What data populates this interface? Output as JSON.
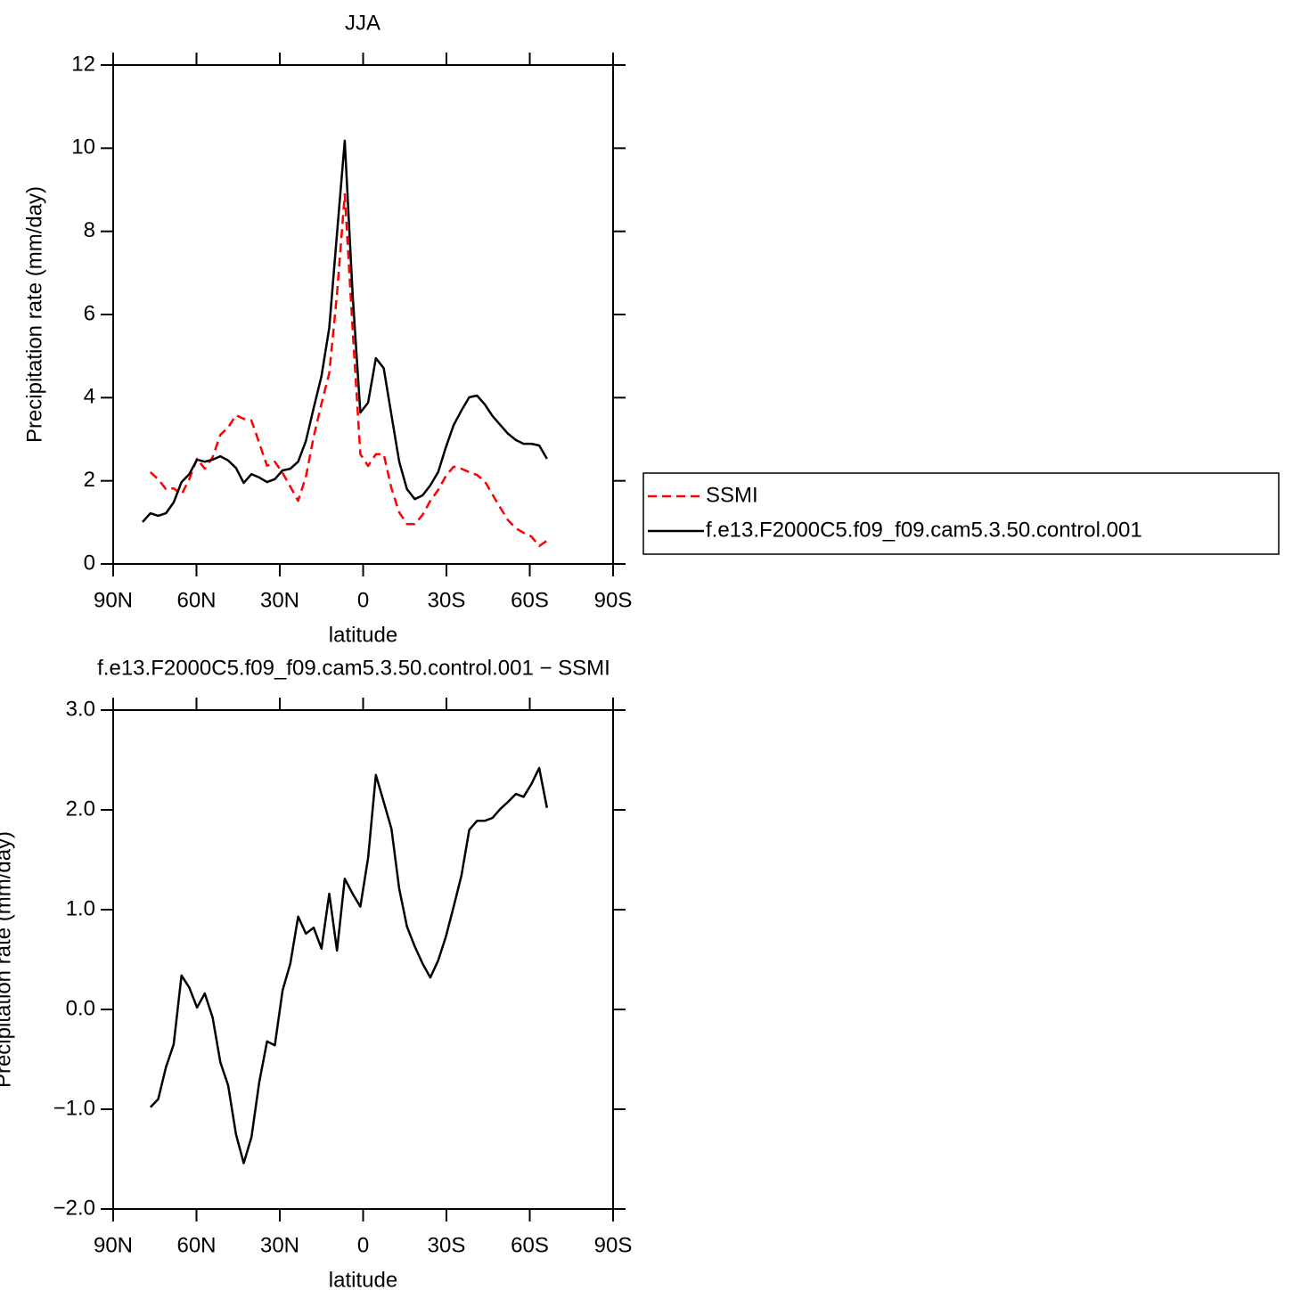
{
  "chart_data": [
    {
      "type": "line",
      "title": "JJA",
      "xlabel": "latitude",
      "ylabel": "Precipitation rate (mm/day)",
      "x": [
        79.4,
        76.6,
        73.8,
        71.0,
        68.2,
        65.4,
        62.6,
        59.8,
        57.0,
        54.2,
        51.4,
        48.6,
        45.8,
        43.0,
        40.2,
        37.4,
        34.6,
        31.8,
        29.0,
        26.2,
        23.4,
        20.6,
        17.8,
        15.0,
        12.2,
        9.4,
        6.6,
        3.8,
        1.0,
        -1.8,
        -4.6,
        -7.4,
        -10.2,
        -13.0,
        -15.8,
        -18.6,
        -21.4,
        -24.2,
        -27.0,
        -29.8,
        -32.6,
        -35.4,
        -38.2,
        -41.0,
        -43.8,
        -46.6,
        -49.4,
        -52.2,
        -55.0,
        -57.8,
        -60.6,
        -63.4,
        -66.2
      ],
      "series": [
        {
          "name": "SSMI",
          "color": "#ff0000",
          "linestyle": "dashed",
          "values": [
            null,
            2.21,
            2.04,
            1.8,
            1.82,
            1.67,
            2.04,
            2.53,
            2.29,
            2.57,
            3.11,
            3.28,
            3.58,
            3.49,
            3.45,
            2.91,
            2.36,
            2.46,
            2.19,
            1.86,
            1.52,
            2.1,
            3.06,
            3.86,
            4.59,
            6.49,
            8.89,
            5.64,
            2.64,
            2.36,
            2.64,
            2.64,
            1.82,
            1.24,
            0.96,
            0.96,
            1.18,
            1.52,
            1.78,
            2.12,
            2.34,
            2.29,
            2.21,
            2.14,
            1.99,
            1.67,
            1.35,
            1.05,
            0.86,
            0.75,
            0.66,
            0.43,
            0.56
          ]
        },
        {
          "name": "f.e13.F2000C5.f09_f09.cam5.3.50.control.001",
          "color": "#000000",
          "linestyle": "solid",
          "values": [
            1.01,
            1.22,
            1.16,
            1.22,
            1.48,
            1.97,
            2.16,
            2.51,
            2.46,
            2.51,
            2.59,
            2.49,
            2.31,
            1.95,
            2.16,
            2.08,
            1.97,
            2.04,
            2.25,
            2.29,
            2.46,
            2.96,
            3.75,
            4.52,
            5.68,
            7.95,
            10.18,
            6.49,
            3.64,
            3.88,
            4.95,
            4.71,
            3.58,
            2.46,
            1.8,
            1.56,
            1.65,
            1.89,
            2.21,
            2.81,
            3.34,
            3.69,
            4.01,
            4.05,
            3.84,
            3.56,
            3.34,
            3.13,
            2.98,
            2.89,
            2.89,
            2.85,
            2.53
          ]
        }
      ],
      "xlim": [
        90,
        -90
      ],
      "xticks": [
        {
          "value": 90,
          "label": "90N"
        },
        {
          "value": 60,
          "label": "60N"
        },
        {
          "value": 30,
          "label": "30N"
        },
        0,
        {
          "value": -30,
          "label": "30S"
        },
        {
          "value": -60,
          "label": "60S"
        },
        {
          "value": -90,
          "label": "90S"
        }
      ],
      "ylim": [
        0,
        12
      ],
      "yticks": [
        0,
        2,
        4,
        6,
        8,
        10,
        12
      ],
      "legend": "right"
    },
    {
      "type": "line",
      "title": "f.e13.F2000C5.f09_f09.cam5.3.50.control.001 − SSMI",
      "xlabel": "latitude",
      "ylabel": "Precipitation rate (mm/day)",
      "x": [
        76.6,
        73.8,
        71.0,
        68.2,
        65.4,
        62.6,
        59.8,
        57.0,
        54.2,
        51.4,
        48.6,
        45.8,
        43.0,
        40.2,
        37.4,
        34.6,
        31.8,
        29.0,
        26.2,
        23.4,
        20.6,
        17.8,
        15.0,
        12.2,
        9.4,
        6.6,
        3.8,
        1.0,
        -1.8,
        -4.6,
        -7.4,
        -10.2,
        -13.0,
        -15.8,
        -18.6,
        -21.4,
        -24.2,
        -27.0,
        -29.8,
        -32.6,
        -35.4,
        -38.2,
        -41.0,
        -43.8,
        -46.6,
        -49.4,
        -52.2,
        -55.0,
        -57.8,
        -60.6,
        -63.4,
        -66.2
      ],
      "color": "#000000",
      "values": [
        -0.98,
        -0.9,
        -0.58,
        -0.35,
        0.34,
        0.22,
        0.02,
        0.16,
        -0.08,
        -0.53,
        -0.76,
        -1.25,
        -1.54,
        -1.28,
        -0.73,
        -0.32,
        -0.36,
        0.19,
        0.46,
        0.93,
        0.76,
        0.82,
        0.61,
        1.16,
        0.59,
        1.31,
        1.16,
        1.03,
        1.52,
        2.35,
        2.08,
        1.81,
        1.21,
        0.83,
        0.63,
        0.46,
        0.32,
        0.49,
        0.73,
        1.03,
        1.34,
        1.8,
        1.89,
        1.89,
        1.92,
        2.01,
        2.08,
        2.16,
        2.13,
        2.26,
        2.42,
        2.02
      ],
      "xlim": [
        90,
        -90
      ],
      "xticks": [
        {
          "value": 90,
          "label": "90N"
        },
        {
          "value": 60,
          "label": "60N"
        },
        {
          "value": 30,
          "label": "30N"
        },
        0,
        {
          "value": -30,
          "label": "30S"
        },
        {
          "value": -60,
          "label": "60S"
        },
        {
          "value": -90,
          "label": "90S"
        }
      ],
      "ylim": [
        -2,
        3
      ],
      "yticks": [
        {
          "value": -2,
          "label": "−2.0"
        },
        {
          "value": -1,
          "label": "−1.0"
        },
        {
          "value": 0,
          "label": "0.0"
        },
        {
          "value": 1,
          "label": "1.0"
        },
        {
          "value": 2,
          "label": "2.0"
        },
        {
          "value": 3,
          "label": "3.0"
        }
      ]
    }
  ]
}
